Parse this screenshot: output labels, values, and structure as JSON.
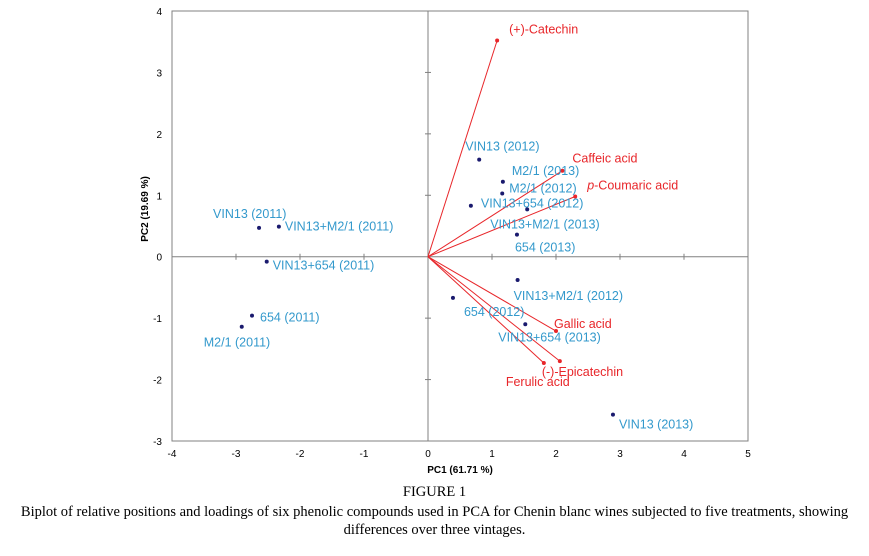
{
  "figure": {
    "title": "FIGURE 1",
    "caption": "Biplot of relative positions and loadings of six phenolic compounds used in PCA for Chenin blanc wines subjected to five treatments, showing differences over three vintages."
  },
  "colors": {
    "sample_point": "#1a1a6e",
    "sample_label": "#3399cc",
    "loading": "#e8262a",
    "axis": "#808080"
  },
  "chart_data": {
    "type": "scatter",
    "subtype": "biplot",
    "title": "",
    "xlabel": "PC1 (61.71 %)",
    "ylabel": "PC2 (19.69 %)",
    "xlim": [
      -4,
      5
    ],
    "ylim": [
      -3,
      4
    ],
    "xticks": [
      -4,
      -3,
      -2,
      -1,
      0,
      1,
      2,
      3,
      4,
      5
    ],
    "yticks": [
      -3,
      -2,
      -1,
      0,
      1,
      2,
      3,
      4
    ],
    "grid": false,
    "legend": "none",
    "samples": [
      {
        "label": "VIN13 (2011)",
        "x": -2.64,
        "y": 0.47
      },
      {
        "label": "VIN13+M2/1 (2011)",
        "x": -2.33,
        "y": 0.49
      },
      {
        "label": "VIN13+654 (2011)",
        "x": -2.52,
        "y": -0.08
      },
      {
        "label": "654 (2011)",
        "x": -2.75,
        "y": -0.96
      },
      {
        "label": "M2/1 (2011)",
        "x": -2.91,
        "y": -1.14
      },
      {
        "label": "VIN13 (2012)",
        "x": 0.8,
        "y": 1.58
      },
      {
        "label": "M2/1 (2013)",
        "x": 1.17,
        "y": 1.22
      },
      {
        "label": "M2/1 (2012)",
        "x": 1.16,
        "y": 1.03
      },
      {
        "label": "VIN13+654 (2012)",
        "x": 0.67,
        "y": 0.83
      },
      {
        "label": "VIN13+M2/1 (2013)",
        "x": 1.55,
        "y": 0.77
      },
      {
        "label": "654 (2013)",
        "x": 1.39,
        "y": 0.36
      },
      {
        "label": "VIN13+M2/1 (2012)",
        "x": 1.4,
        "y": -0.38
      },
      {
        "label": "654 (2012)",
        "x": 0.39,
        "y": -0.67
      },
      {
        "label": "VIN13+654 (2013)",
        "x": 1.52,
        "y": -1.1
      },
      {
        "label": "VIN13 (2013)",
        "x": 2.89,
        "y": -2.57
      }
    ],
    "loadings": [
      {
        "label": "(+)-Catechin",
        "x": 1.08,
        "y": 3.52
      },
      {
        "label": "Caffeic  acid",
        "x": 2.1,
        "y": 1.4
      },
      {
        "label": "p-Coumaric  acid",
        "x": 2.3,
        "y": 0.98,
        "italic_prefix": "p"
      },
      {
        "label": "Gallic acid",
        "x": 2.0,
        "y": -1.21
      },
      {
        "label": "(-)-Epicatechin",
        "x": 2.06,
        "y": -1.7
      },
      {
        "label": "Ferulic acid",
        "x": 1.81,
        "y": -1.73
      }
    ]
  }
}
